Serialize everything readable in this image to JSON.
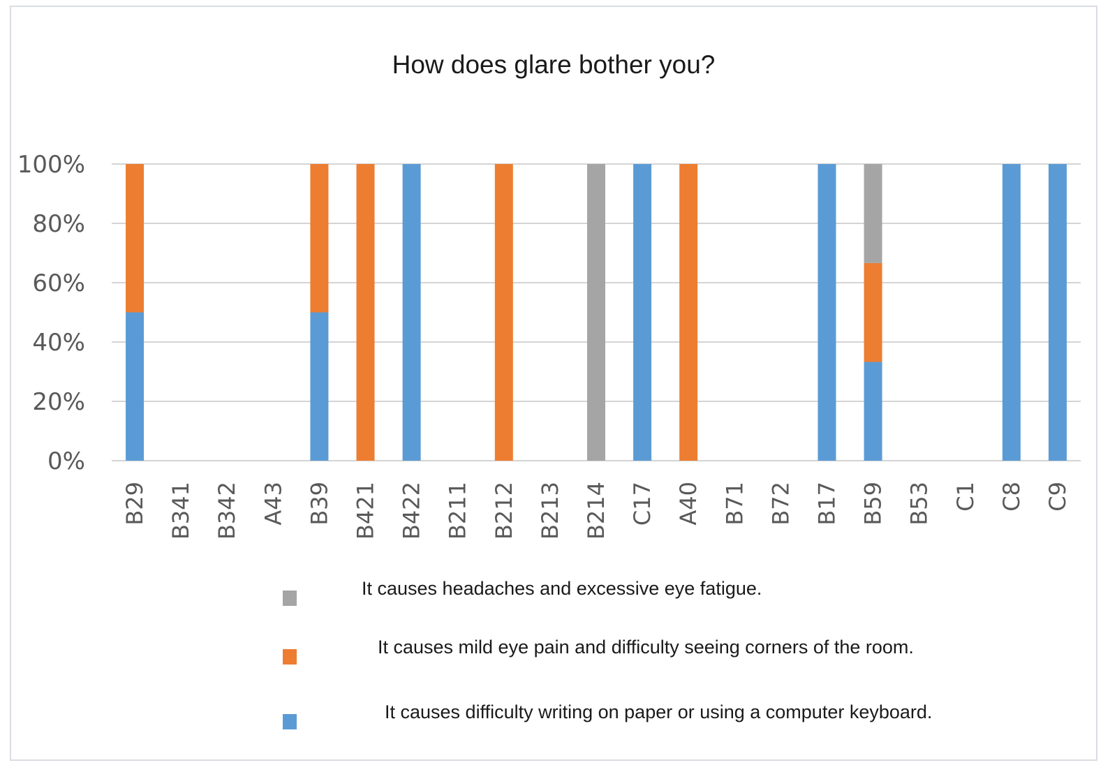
{
  "chart_data": {
    "type": "bar",
    "stacked": true,
    "normalized": true,
    "title": "How does glare bother you?",
    "categories": [
      "B29",
      "B341",
      "B342",
      "A43",
      "B39",
      "B421",
      "B422",
      "B211",
      "B212",
      "B213",
      "B214",
      "C17",
      "A40",
      "B71",
      "B72",
      "B17",
      "B59",
      "B53",
      "C1",
      "C8",
      "C9"
    ],
    "series": [
      {
        "name": "It causes difficulty writing on paper or using a computer keyboard.",
        "color": "#5b9bd5",
        "values": [
          50,
          0,
          0,
          0,
          50,
          0,
          100,
          0,
          0,
          0,
          0,
          100,
          0,
          0,
          0,
          100,
          33.3,
          0,
          0,
          100,
          100
        ]
      },
      {
        "name": "It causes mild eye pain and difficulty seeing corners of the room.",
        "color": "#ed7d31",
        "values": [
          50,
          0,
          0,
          0,
          50,
          100,
          0,
          0,
          100,
          0,
          0,
          0,
          100,
          0,
          0,
          0,
          33.3,
          0,
          0,
          0,
          0
        ]
      },
      {
        "name": "It causes headaches and excessive eye fatigue.",
        "color": "#a5a5a5",
        "values": [
          0,
          0,
          0,
          0,
          0,
          0,
          0,
          0,
          0,
          0,
          100,
          0,
          0,
          0,
          0,
          0,
          33.4,
          0,
          0,
          0,
          0
        ]
      }
    ],
    "y_ticks": [
      "0%",
      "20%",
      "40%",
      "60%",
      "80%",
      "100%"
    ],
    "ylim": [
      0,
      100
    ],
    "grid": true,
    "legend_position": "bottom",
    "legend_order": [
      "It causes headaches and excessive eye fatigue.",
      "It causes mild eye pain and difficulty seeing corners of the room.",
      "It causes difficulty writing on paper or using a computer keyboard."
    ]
  }
}
